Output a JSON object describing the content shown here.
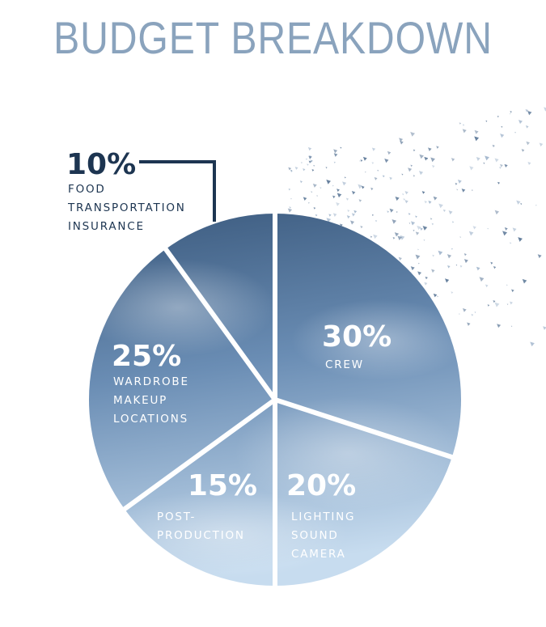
{
  "chart_data": {
    "type": "pie",
    "title": "BUDGET BREAKDOWN",
    "slices": [
      {
        "value": 30,
        "label": "30%",
        "categories": [
          "CREW"
        ]
      },
      {
        "value": 20,
        "label": "20%",
        "categories": [
          "LIGHTING",
          "SOUND",
          "CAMERA"
        ]
      },
      {
        "value": 15,
        "label": "15%",
        "categories": [
          "POST-",
          "PRODUCTION"
        ]
      },
      {
        "value": 25,
        "label": "25%",
        "categories": [
          "WARDROBE",
          "MAKEUP",
          "LOCATIONS"
        ]
      },
      {
        "value": 10,
        "label": "10%",
        "categories": [
          "FOOD",
          "TRANSPORTATION",
          "INSURANCE"
        ]
      }
    ],
    "start": "12 o'clock",
    "direction": "clockwise"
  },
  "colors": {
    "title": "#8aa3bd",
    "label_dark": "#1d3551",
    "label_light": "#ffffff",
    "sky_top": "#3c5b7f",
    "sky_bottom": "#c7dcef",
    "divider": "#ffffff",
    "leader_line": "#1d3551"
  }
}
